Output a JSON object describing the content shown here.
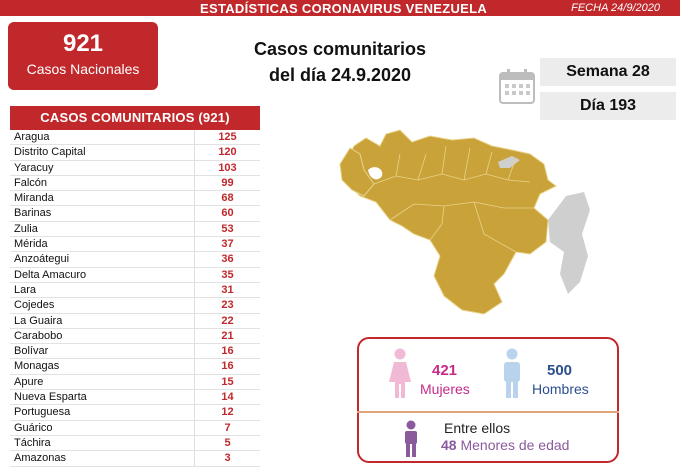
{
  "header": {
    "title": "ESTADÍSTICAS CORONAVIRUS VENEZUELA",
    "date": "FECHA 24/9/2020"
  },
  "national": {
    "count": "921",
    "label": "Casos Nacionales"
  },
  "headline": {
    "line1": "Casos comunitarios",
    "line2": "del día 24.9.2020"
  },
  "calendar": {
    "week": "Semana 28",
    "day": "Día 193",
    "icon": "calendar-icon"
  },
  "table": {
    "title": "CASOS COMUNITARIOS (921)",
    "rows": [
      {
        "state": "Aragua",
        "cases": "125"
      },
      {
        "state": "Distrito Capital",
        "cases": "120"
      },
      {
        "state": "Yaracuy",
        "cases": "103"
      },
      {
        "state": "Falcón",
        "cases": "99"
      },
      {
        "state": "Miranda",
        "cases": "68"
      },
      {
        "state": "Barinas",
        "cases": "60"
      },
      {
        "state": "Zulia",
        "cases": "53"
      },
      {
        "state": "Mérida",
        "cases": "37"
      },
      {
        "state": "Anzoátegui",
        "cases": "36"
      },
      {
        "state": "Delta Amacuro",
        "cases": "35"
      },
      {
        "state": "Lara",
        "cases": "31"
      },
      {
        "state": "Cojedes",
        "cases": "23"
      },
      {
        "state": "La Guaira",
        "cases": "22"
      },
      {
        "state": "Carabobo",
        "cases": "21"
      },
      {
        "state": "Bolívar",
        "cases": "16"
      },
      {
        "state": "Monagas",
        "cases": "16"
      },
      {
        "state": "Apure",
        "cases": "15"
      },
      {
        "state": "Nueva Esparta",
        "cases": "14"
      },
      {
        "state": "Portuguesa",
        "cases": "12"
      },
      {
        "state": "Guárico",
        "cases": "7"
      },
      {
        "state": "Táchira",
        "cases": "5"
      },
      {
        "state": "Amazonas",
        "cases": "3"
      }
    ]
  },
  "gender": {
    "women_count": "421",
    "women_label": "Mujeres",
    "men_count": "500",
    "men_label": "Hombres",
    "among_label": "Entre ellos",
    "minors_count": "48",
    "minors_label": "Menores de edad"
  },
  "colors": {
    "accent": "#c0282b",
    "map_fill": "#c9a23a",
    "map_gray": "#cfcfcf",
    "women": "#c52b8a",
    "men": "#2b4f8f",
    "minors": "#8a5a9c"
  }
}
